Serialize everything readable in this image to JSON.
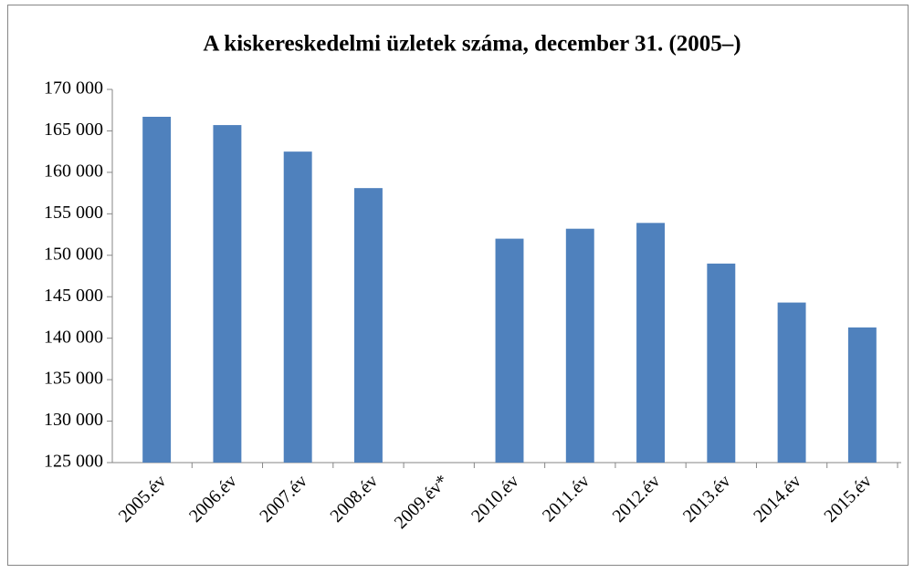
{
  "chart_data": {
    "type": "bar",
    "title": "A kiskereskedelmi üzletek száma, december 31. (2005–)",
    "categories": [
      "2005.év",
      "2006.év",
      "2007.év",
      "2008.év",
      "2009.év*",
      "2010.év",
      "2011.év",
      "2012.év",
      "2013.év",
      "2014.év",
      "2015.év"
    ],
    "values": [
      166700,
      165700,
      162500,
      158100,
      null,
      152000,
      153200,
      153900,
      149000,
      144300,
      141300
    ],
    "color": "#4f81bd",
    "ylim": [
      125000,
      170000
    ],
    "yticks": [
      {
        "value": 125000,
        "label": "125 000"
      },
      {
        "value": 130000,
        "label": "130 000"
      },
      {
        "value": 135000,
        "label": "135 000"
      },
      {
        "value": 140000,
        "label": "140 000"
      },
      {
        "value": 145000,
        "label": "145 000"
      },
      {
        "value": 150000,
        "label": "150 000"
      },
      {
        "value": 155000,
        "label": "155 000"
      },
      {
        "value": 160000,
        "label": "160 000"
      },
      {
        "value": 165000,
        "label": "165 000"
      },
      {
        "value": 170000,
        "label": "170 000"
      }
    ],
    "grid": false
  }
}
